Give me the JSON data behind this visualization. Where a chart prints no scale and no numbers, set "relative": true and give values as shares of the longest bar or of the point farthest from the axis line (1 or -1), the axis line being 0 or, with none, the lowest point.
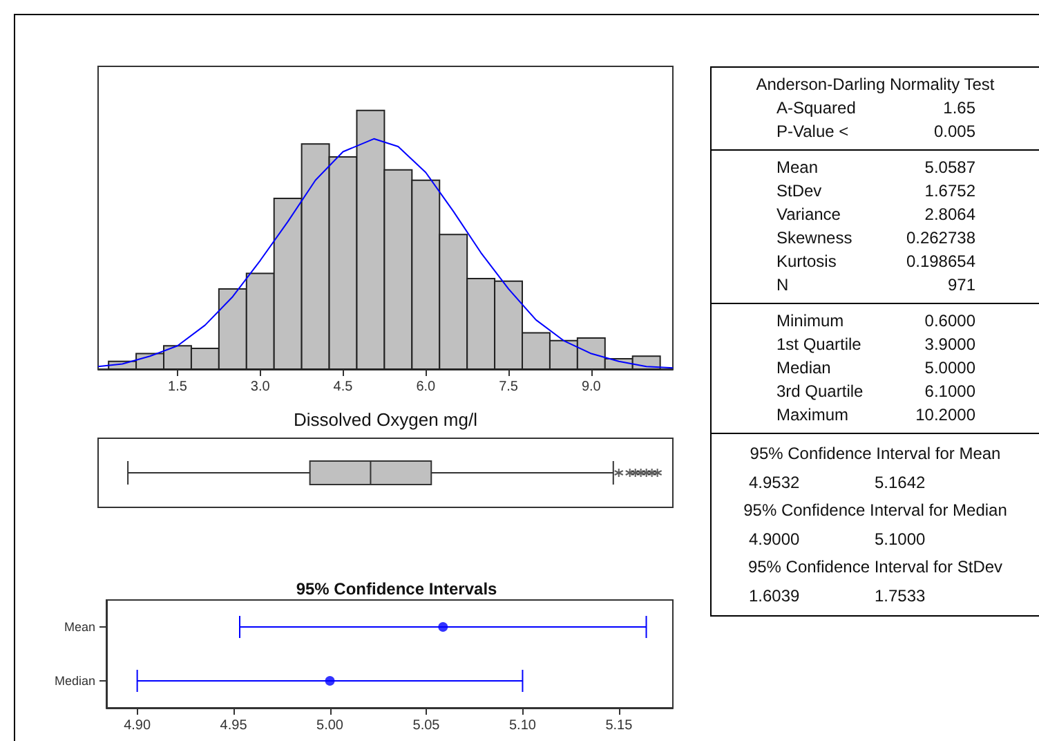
{
  "chart_data": [
    {
      "type": "histogram",
      "xlabel": "Dissolved Oxygen mg/l",
      "relative": true,
      "bins": [
        0.25,
        0.75,
        1.25,
        1.75,
        2.25,
        2.75,
        3.25,
        3.75,
        4.25,
        4.75,
        5.25,
        5.75,
        6.25,
        6.75,
        7.25,
        7.75,
        8.25,
        8.75,
        9.25,
        9.75,
        10.25
      ],
      "series": [
        {
          "type": "histogram",
          "color": "#c0c0c0",
          "values": [
            0.03,
            0.06,
            0.09,
            0.08,
            0.31,
            0.37,
            0.66,
            0.87,
            0.82,
            1,
            0.77,
            0.73,
            0.52,
            0.35,
            0.34,
            0.14,
            0.11,
            0.12,
            0.04,
            0.05
          ]
        },
        {
          "type": "line",
          "color": "#0000ff",
          "x": [
            0.06,
            0.5,
            1.0,
            1.5,
            2.0,
            2.5,
            3.0,
            3.5,
            4.0,
            4.5,
            5.06,
            5.5,
            6.0,
            6.5,
            7.0,
            7.5,
            8.0,
            8.5,
            9.0,
            9.5,
            10.0,
            10.48
          ],
          "values": [
            0.01,
            0.02,
            0.05,
            0.09,
            0.17,
            0.28,
            0.42,
            0.57,
            0.73,
            0.84,
            0.89,
            0.86,
            0.76,
            0.61,
            0.45,
            0.31,
            0.19,
            0.11,
            0.06,
            0.03,
            0.01,
            0.005
          ]
        }
      ],
      "xlim": [
        0.06,
        10.48
      ],
      "xticks": [
        1.5,
        {
          "value": 3,
          "label": "3.0"
        },
        4.5,
        {
          "value": 6,
          "label": "6.0"
        },
        7.5,
        {
          "value": 9,
          "label": "9.0"
        }
      ],
      "tick_labels": "x",
      "marker": "none"
    },
    {
      "type": "box",
      "orientation": "horizontal",
      "color": "#c0c0c0",
      "categories": [
        null
      ],
      "boxes": [
        {
          "low": 0.6,
          "q1": 3.9,
          "median": 5.0,
          "q3": 6.1,
          "high": 9.4,
          "outliers": [
            9.5,
            9.7,
            9.8,
            9.9,
            10.0,
            10.1,
            10.2
          ]
        }
      ],
      "xlim": [
        0.06,
        10.48
      ],
      "tick_labels": false,
      "marker": "star"
    },
    {
      "type": "scatter",
      "title": "95% Confidence Intervals",
      "orientation": "horizontal",
      "categories": [
        "Mean",
        "Median"
      ],
      "values": [
        5.0587,
        5.0
      ],
      "errors": [
        [
          4.9532,
          5.1642
        ],
        [
          4.9,
          5.1
        ]
      ],
      "color": "#0000ff",
      "marker": "circle",
      "xlim": [
        4.884,
        5.178
      ],
      "xticks": [
        {
          "value": 4.9,
          "label": "4.90"
        },
        4.95,
        {
          "value": 5.0,
          "label": "5.00"
        },
        5.05,
        {
          "value": 5.1,
          "label": "5.10"
        },
        5.15
      ]
    },
    {
      "type": "other",
      "annotations": [
        "Anderson-Darling Normality Test",
        "A-Squared",
        "1.65",
        "P-Value <",
        "0.005",
        "Mean",
        "5.0587",
        "StDev",
        "1.6752",
        "Variance",
        "2.8064",
        "Skewness",
        "0.262738",
        "Kurtosis",
        "0.198654",
        "N",
        "971",
        "Minimum",
        "0.6000",
        "1st Quartile",
        "3.9000",
        "Median",
        "5.0000",
        "3rd Quartile",
        "6.1000",
        "Maximum",
        "10.2000",
        "95% Confidence Interval for Mean",
        "4.9532",
        "5.1642",
        "95% Confidence Interval for Median",
        "4.9000",
        "5.1000",
        "95% Confidence Interval for StDev",
        "1.6039",
        "1.7533"
      ]
    }
  ]
}
